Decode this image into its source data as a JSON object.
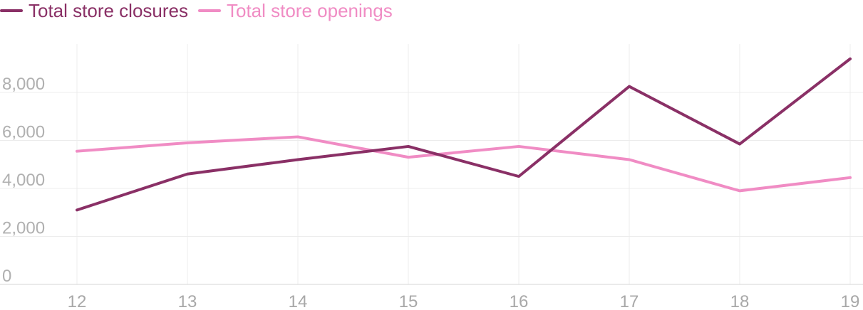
{
  "chart_data": {
    "type": "line",
    "title": "",
    "xlabel": "",
    "ylabel": "",
    "x": [
      "12",
      "13",
      "14",
      "15",
      "16",
      "17",
      "18",
      "19"
    ],
    "yticks": [
      "0",
      "2,000",
      "4,000",
      "6,000",
      "8,000"
    ],
    "ytick_values": [
      0,
      2000,
      4000,
      6000,
      8000
    ],
    "ylim": [
      0,
      10000
    ],
    "grid": true,
    "legend": "top-left",
    "series": [
      {
        "name": "Total store closures",
        "color": "#8a3066",
        "values": [
          3100,
          4600,
          5200,
          5750,
          4500,
          8250,
          5850,
          9400
        ]
      },
      {
        "name": "Total store openings",
        "color": "#f08cc4",
        "values": [
          5550,
          5900,
          6150,
          5300,
          5750,
          5200,
          3900,
          4450
        ]
      }
    ]
  }
}
